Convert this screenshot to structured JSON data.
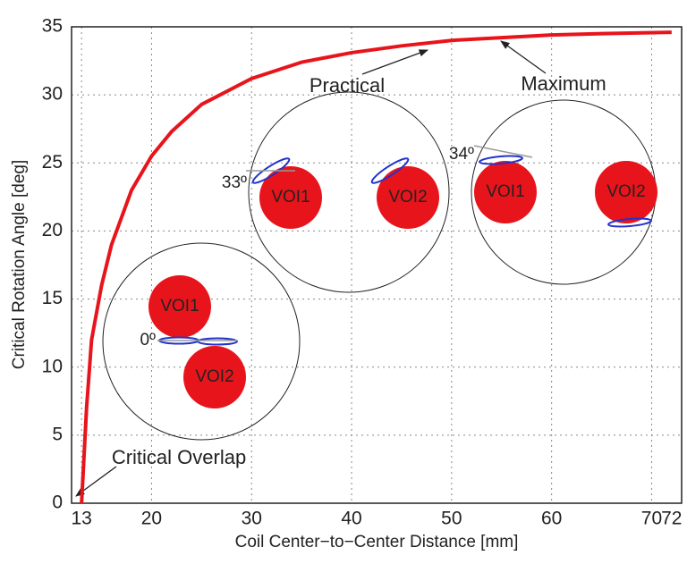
{
  "chart_data": {
    "type": "line",
    "xlabel": "Coil Center−to−Center Distance [mm]",
    "ylabel": "Critical Rotation Angle [deg]",
    "x": [
      13,
      13.5,
      14,
      15,
      16,
      18,
      20,
      22,
      25,
      30,
      35,
      40,
      45,
      50,
      55,
      60,
      65,
      72
    ],
    "values": [
      0,
      7,
      12,
      16,
      19,
      23,
      25.5,
      27.3,
      29.3,
      31.2,
      32.4,
      33.1,
      33.6,
      34,
      34.2,
      34.4,
      34.5,
      34.6
    ],
    "color": "#e8141b",
    "xlim": [
      12,
      73
    ],
    "ylim": [
      0,
      35
    ],
    "xticks": [
      13,
      20,
      30,
      40,
      50,
      60,
      70,
      72
    ],
    "yticks": [
      0,
      5,
      10,
      15,
      20,
      25,
      30,
      35
    ],
    "grid": true,
    "annotations": [
      "Practical",
      "Maximum",
      "Critical Overlap"
    ],
    "insets": [
      {
        "labels": [
          "VOI1",
          "VOI2",
          "0º"
        ]
      },
      {
        "labels": [
          "VOI1",
          "VOI2",
          "33º"
        ]
      },
      {
        "labels": [
          "VOI1",
          "VOI2",
          "34º"
        ]
      }
    ]
  }
}
